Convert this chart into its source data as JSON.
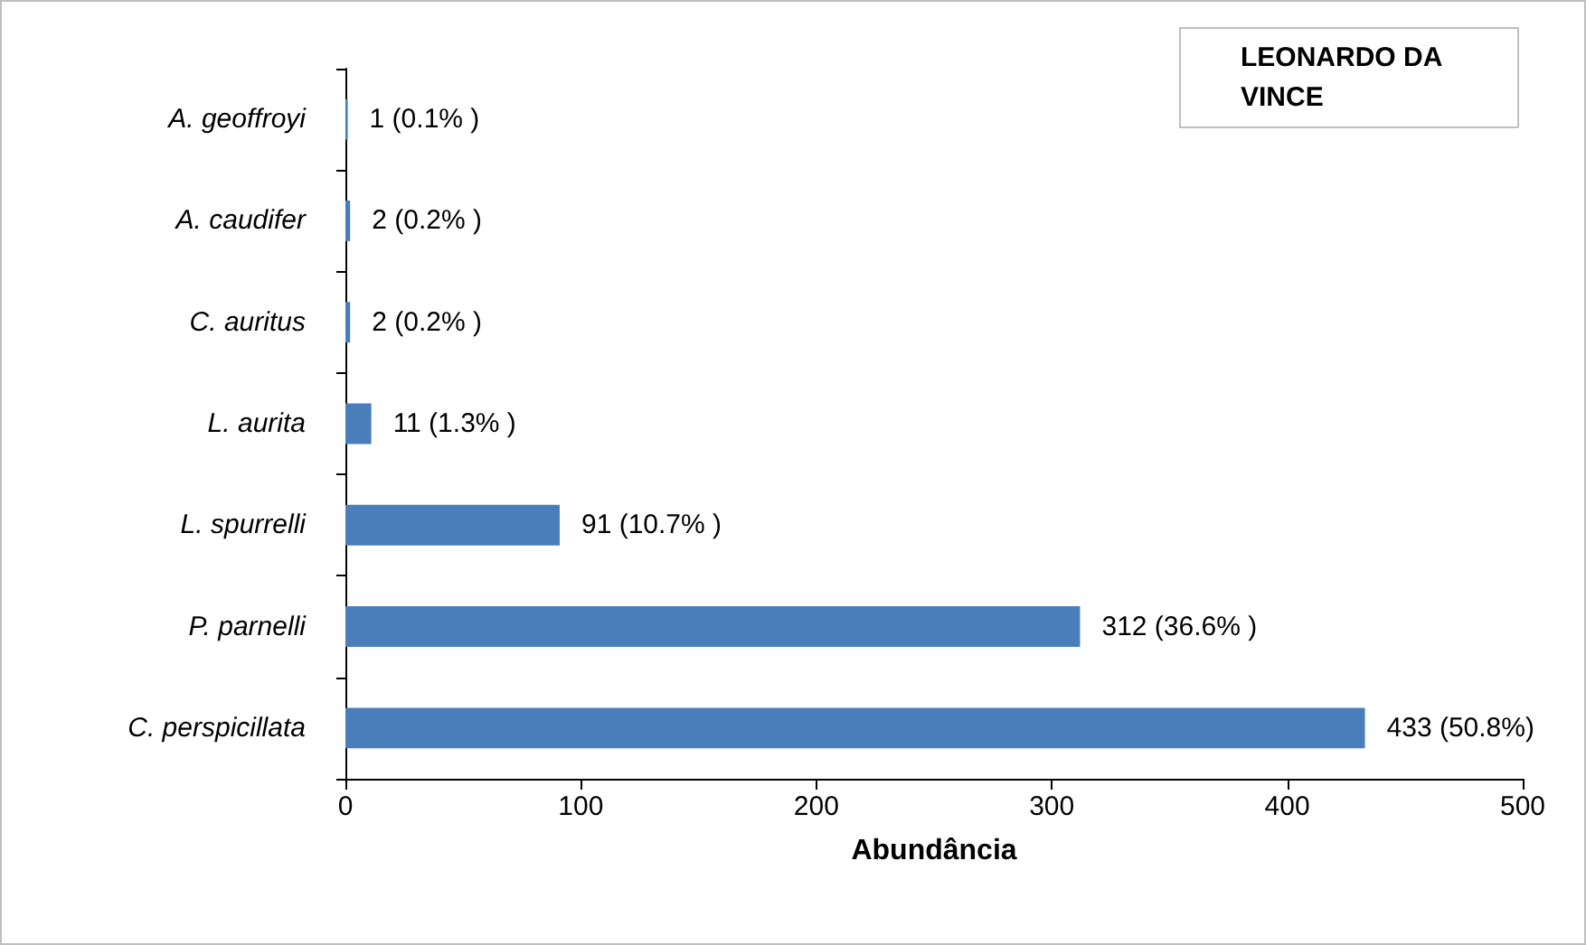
{
  "chart_data": {
    "type": "bar",
    "orientation": "horizontal",
    "title": "LEONARDO DA VINCE",
    "xlabel": "Abundância",
    "categories": [
      "A. geoffroyi",
      "A. caudifer",
      "C. auritus",
      "L. aurita",
      "L. spurrelli",
      "P. parnelli",
      "C. perspicillata"
    ],
    "values": [
      1,
      2,
      2,
      11,
      91,
      312,
      433
    ],
    "value_labels": [
      "1 (0.1% )",
      "2 (0.2% )",
      "2 (0.2% )",
      "11 (1.3% )",
      "91 (10.7% )",
      "312 (36.6% )",
      "433 (50.8%)"
    ],
    "color": "#4a7ebb",
    "xlim": [
      0,
      500
    ],
    "xticks": [
      0,
      100,
      200,
      300,
      400,
      500
    ]
  }
}
